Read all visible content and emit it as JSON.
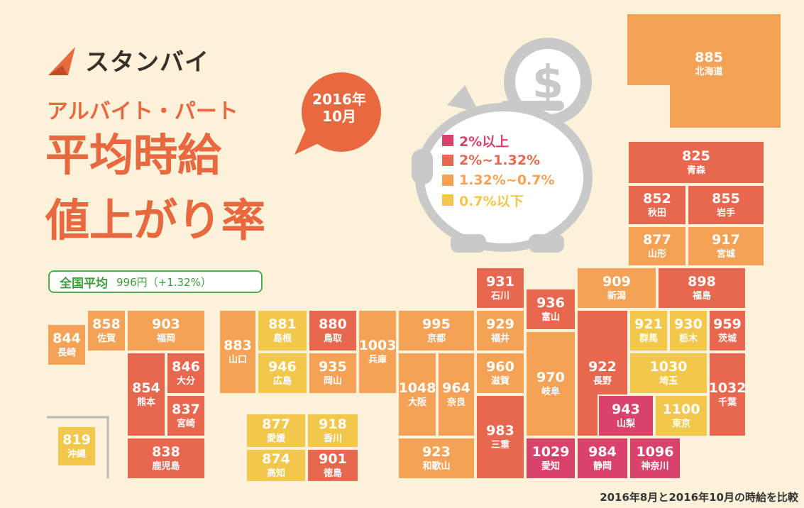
{
  "brand": {
    "name": "スタンバイ"
  },
  "subtitle": "アルバイト・パート",
  "title": {
    "line1": "平均時給",
    "line2": "値上がり率"
  },
  "badge": {
    "year": "2016年",
    "month": "10月"
  },
  "national_average": {
    "label": "全国平均",
    "value": "996円（+1.32%）"
  },
  "legend": [
    {
      "label": "2%以上",
      "color": "#d9436b"
    },
    {
      "label": "2%~1.32%",
      "color": "#e8684f"
    },
    {
      "label": "1.32%~0.7%",
      "color": "#f4a356"
    },
    {
      "label": "0.7%以下",
      "color": "#f1c84b"
    }
  ],
  "footnote": "2016年8月と2016年10月の時給を比較",
  "prefectures": [
    {
      "name": "北海道",
      "value": "885",
      "color": "#f4a356"
    },
    {
      "name": "青森",
      "value": "825",
      "color": "#e8684f"
    },
    {
      "name": "秋田",
      "value": "852",
      "color": "#e8684f"
    },
    {
      "name": "岩手",
      "value": "855",
      "color": "#e8684f"
    },
    {
      "name": "山形",
      "value": "877",
      "color": "#f4a356"
    },
    {
      "name": "宮城",
      "value": "917",
      "color": "#f4a356"
    },
    {
      "name": "新潟",
      "value": "909",
      "color": "#f4a356"
    },
    {
      "name": "福島",
      "value": "898",
      "color": "#e8684f"
    },
    {
      "name": "石川",
      "value": "931",
      "color": "#e8684f"
    },
    {
      "name": "富山",
      "value": "936",
      "color": "#e8684f"
    },
    {
      "name": "福井",
      "value": "929",
      "color": "#f4a356"
    },
    {
      "name": "滋賀",
      "value": "960",
      "color": "#f4a356"
    },
    {
      "name": "三重",
      "value": "983",
      "color": "#e8684f"
    },
    {
      "name": "岐阜",
      "value": "970",
      "color": "#f4a356"
    },
    {
      "name": "長野",
      "value": "922",
      "color": "#e8684f"
    },
    {
      "name": "群馬",
      "value": "921",
      "color": "#f1c84b"
    },
    {
      "name": "栃木",
      "value": "930",
      "color": "#f1c84b"
    },
    {
      "name": "茨城",
      "value": "959",
      "color": "#e8684f"
    },
    {
      "name": "埼玉",
      "value": "1030",
      "color": "#f1c84b"
    },
    {
      "name": "千葉",
      "value": "1032",
      "color": "#e8684f"
    },
    {
      "name": "山梨",
      "value": "943",
      "color": "#d9436b"
    },
    {
      "name": "東京",
      "value": "1100",
      "color": "#f1c84b"
    },
    {
      "name": "愛知",
      "value": "1029",
      "color": "#d9436b"
    },
    {
      "name": "静岡",
      "value": "984",
      "color": "#d9436b"
    },
    {
      "name": "神奈川",
      "value": "1096",
      "color": "#d9436b"
    },
    {
      "name": "京都",
      "value": "995",
      "color": "#f4a356"
    },
    {
      "name": "大阪",
      "value": "1048",
      "color": "#f4a356"
    },
    {
      "name": "奈良",
      "value": "964",
      "color": "#f4a356"
    },
    {
      "name": "和歌山",
      "value": "923",
      "color": "#f4a356"
    },
    {
      "name": "兵庫",
      "value": "1003",
      "color": "#f4a356"
    },
    {
      "name": "鳥取",
      "value": "880",
      "color": "#e8684f"
    },
    {
      "name": "島根",
      "value": "881",
      "color": "#f1c84b"
    },
    {
      "name": "岡山",
      "value": "935",
      "color": "#f4a356"
    },
    {
      "name": "広島",
      "value": "946",
      "color": "#f1c84b"
    },
    {
      "name": "山口",
      "value": "883",
      "color": "#f4a356"
    },
    {
      "name": "香川",
      "value": "918",
      "color": "#f1c84b"
    },
    {
      "name": "愛媛",
      "value": "877",
      "color": "#f1c84b"
    },
    {
      "name": "徳島",
      "value": "901",
      "color": "#e8684f"
    },
    {
      "name": "高知",
      "value": "874",
      "color": "#f1c84b"
    },
    {
      "name": "福岡",
      "value": "903",
      "color": "#f4a356"
    },
    {
      "name": "佐賀",
      "value": "858",
      "color": "#f4a356"
    },
    {
      "name": "長崎",
      "value": "844",
      "color": "#f4a356"
    },
    {
      "name": "大分",
      "value": "846",
      "color": "#e8684f"
    },
    {
      "name": "熊本",
      "value": "854",
      "color": "#e8684f"
    },
    {
      "name": "宮崎",
      "value": "837",
      "color": "#e8684f"
    },
    {
      "name": "鹿児島",
      "value": "838",
      "color": "#e8684f"
    },
    {
      "name": "沖縄",
      "value": "819",
      "color": "#f1c84b"
    }
  ]
}
